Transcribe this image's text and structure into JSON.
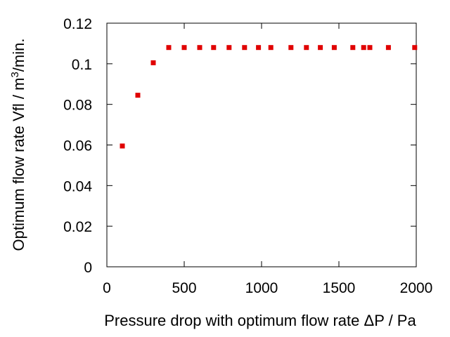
{
  "chart_data": {
    "type": "scatter",
    "title": "",
    "xlabel": "Pressure drop with optimum flow rate ΔP / Pa",
    "ylabel_main": "Optimum flow rate Vfl / m",
    "ylabel_sup": "3",
    "ylabel_tail": "/min.",
    "xlim": [
      0,
      2000
    ],
    "ylim": [
      0,
      0.12
    ],
    "xticks": [
      0,
      500,
      1000,
      1500,
      2000
    ],
    "xtick_labels": [
      "0",
      "500",
      "1000",
      "1500",
      "2000"
    ],
    "yticks": [
      0,
      0.02,
      0.04,
      0.06,
      0.08,
      0.1,
      0.12
    ],
    "ytick_labels": [
      "0",
      "0.02",
      "0.04",
      "0.06",
      "0.08",
      "0.1",
      "0.12"
    ],
    "grid": false,
    "legend": "none",
    "marker_color": "#e00000",
    "series": [
      {
        "x": [
          100,
          200,
          300,
          400,
          500,
          600,
          690,
          790,
          890,
          980,
          1060,
          1190,
          1290,
          1380,
          1470,
          1590,
          1660,
          1700,
          1820,
          1990
        ],
        "y": [
          0.0595,
          0.0845,
          0.1005,
          0.108,
          0.108,
          0.108,
          0.108,
          0.108,
          0.108,
          0.108,
          0.108,
          0.108,
          0.108,
          0.108,
          0.108,
          0.108,
          0.108,
          0.108,
          0.108,
          0.108
        ]
      }
    ]
  }
}
